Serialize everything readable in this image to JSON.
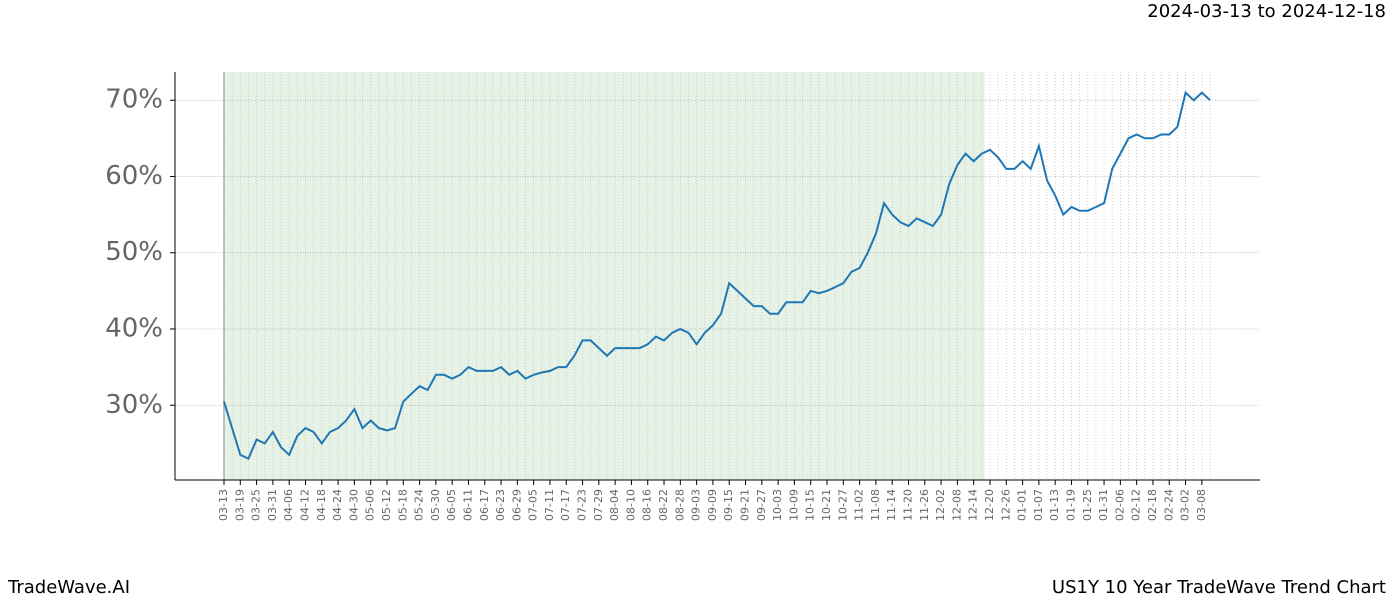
{
  "chart_data": {
    "type": "line",
    "title": "2024-03-13 to 2024-12-18",
    "footer_left": "TradeWave.AI",
    "footer_right": "US1Y 10 Year TradeWave Trend Chart",
    "color": "#1f77b4",
    "shade_color": "#e6f2e6",
    "grid": true,
    "categories": [
      "03-13",
      null,
      "03-19",
      null,
      "03-25",
      null,
      "03-31",
      null,
      "04-06",
      null,
      "04-12",
      null,
      "04-18",
      null,
      "04-24",
      null,
      "04-30",
      null,
      "05-06",
      null,
      "05-12",
      null,
      "05-18",
      null,
      "05-24",
      null,
      "05-30",
      null,
      "06-05",
      null,
      "06-11",
      null,
      "06-17",
      null,
      "06-23",
      null,
      "06-29",
      null,
      "07-05",
      null,
      "07-11",
      null,
      "07-17",
      null,
      "07-23",
      null,
      "07-29",
      null,
      "08-04",
      null,
      "08-10",
      null,
      "08-16",
      null,
      "08-22",
      null,
      "08-28",
      null,
      "09-03",
      null,
      "09-09",
      null,
      "09-15",
      null,
      "09-21",
      null,
      "09-27",
      null,
      "10-03",
      null,
      "10-09",
      null,
      "10-15",
      null,
      "10-21",
      null,
      "10-27",
      null,
      "11-02",
      null,
      "11-08",
      null,
      "11-14",
      null,
      "11-20",
      null,
      "11-26",
      null,
      "12-02",
      null,
      "12-08",
      null,
      "12-14",
      null,
      "12-20",
      null,
      "12-26",
      null,
      "01-01",
      null,
      "01-07",
      null,
      "01-13",
      null,
      "01-19",
      null,
      "01-25",
      null,
      "01-31",
      null,
      "02-06",
      null,
      "02-12",
      null,
      "02-18",
      null,
      "02-24",
      null,
      "03-02",
      null,
      "03-08",
      null
    ],
    "values": [
      30.5,
      27,
      23.5,
      23,
      25.5,
      25,
      26.5,
      24.5,
      23.5,
      26,
      27,
      26.5,
      25,
      26.5,
      27,
      28,
      29.5,
      27,
      28,
      27,
      26.7,
      27,
      30.5,
      31.5,
      32.5,
      32,
      34,
      34,
      33.5,
      34,
      35,
      34.5,
      34.5,
      34.5,
      35,
      34,
      34.5,
      33.5,
      34,
      34.3,
      34.5,
      35,
      35,
      36.5,
      38.5,
      38.5,
      37.5,
      36.5,
      37.5,
      37.5,
      37.5,
      37.5,
      38,
      39,
      38.5,
      39.5,
      40,
      39.5,
      38,
      39.5,
      40.5,
      42,
      46,
      45,
      44,
      43,
      43,
      42,
      42,
      43.5,
      43.5,
      43.5,
      45,
      44.7,
      45,
      45.5,
      46,
      47.5,
      48,
      50,
      52.5,
      56.5,
      55,
      54,
      53.5,
      54.5,
      54,
      53.5,
      55,
      59,
      61.5,
      63,
      62,
      63,
      63.5,
      62.5,
      61,
      61,
      62,
      61,
      64,
      59.5,
      57.5,
      55,
      56,
      55.5,
      55.5,
      56,
      56.5,
      61,
      63,
      65,
      65.5,
      65,
      65,
      65.5,
      65.5,
      66.5,
      71,
      70,
      71,
      70
    ],
    "ylim": [
      20.2,
      73.7
    ],
    "yticks": [
      {
        "value": 30,
        "label": "30%"
      },
      {
        "value": 40,
        "label": "40%"
      },
      {
        "value": 50,
        "label": "50%"
      },
      {
        "value": 60,
        "label": "60%"
      },
      {
        "value": 70,
        "label": "70%"
      }
    ]
  }
}
